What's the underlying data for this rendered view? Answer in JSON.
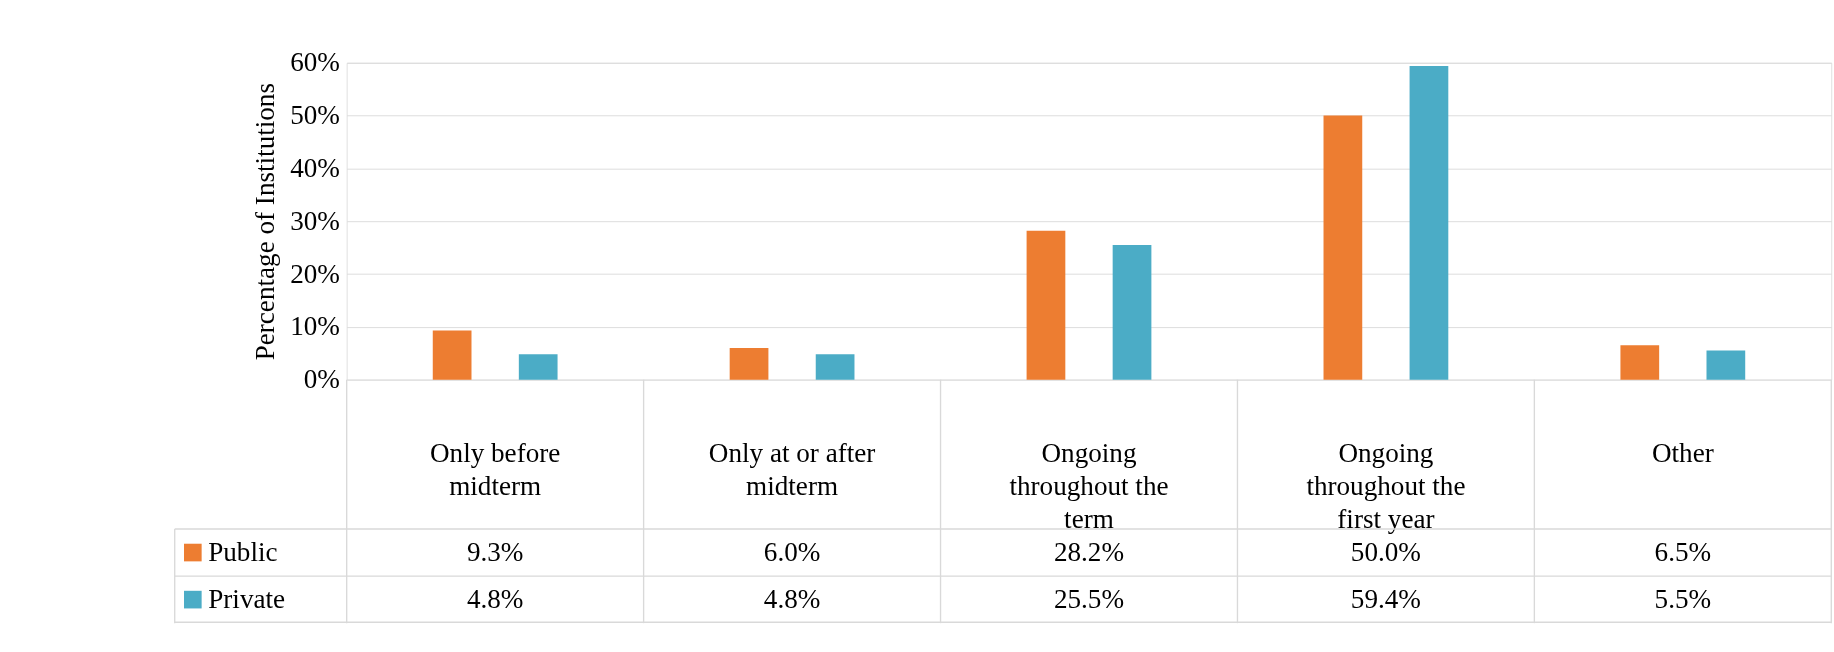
{
  "chart_data": {
    "type": "bar",
    "ylabel": "Percentage of Institutions",
    "categories": [
      "Only before midterm",
      "Only at or after midterm",
      "Ongoing throughout the term",
      "Ongoing throughout the first year",
      "Other"
    ],
    "series": [
      {
        "name": "Public",
        "color": "#ed7d31",
        "values": [
          9.3,
          6.0,
          28.2,
          50.0,
          6.5
        ],
        "value_labels": [
          "9.3%",
          "6.0%",
          "28.2%",
          "50.0%",
          "6.5%"
        ]
      },
      {
        "name": "Private",
        "color": "#4bacc6",
        "values": [
          4.8,
          4.8,
          25.5,
          59.4,
          5.5
        ],
        "value_labels": [
          "4.8%",
          "4.8%",
          "25.5%",
          "59.4%",
          "5.5%"
        ]
      }
    ],
    "ylim": [
      0,
      60
    ],
    "yticks": [
      {
        "value": 0,
        "label": "0%"
      },
      {
        "value": 10,
        "label": "10%"
      },
      {
        "value": 20,
        "label": "20%"
      },
      {
        "value": 30,
        "label": "30%"
      },
      {
        "value": 40,
        "label": "40%"
      },
      {
        "value": 50,
        "label": "50%"
      },
      {
        "value": 60,
        "label": "60%"
      }
    ],
    "grid": "y",
    "legend": "bottom left"
  }
}
